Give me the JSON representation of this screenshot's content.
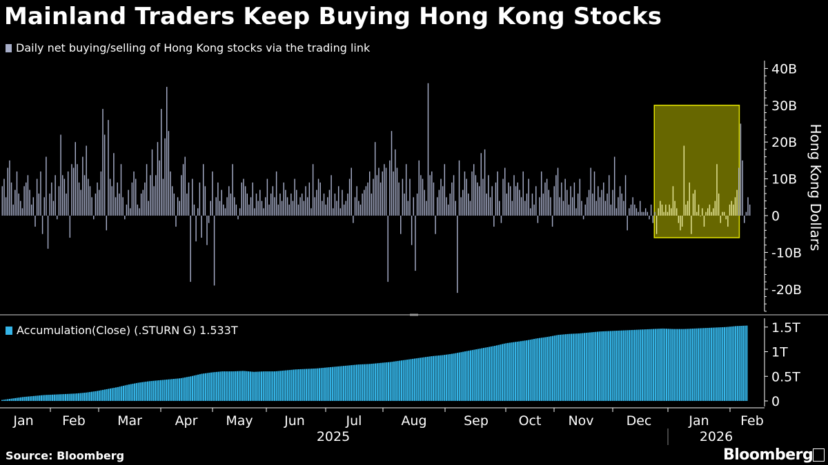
{
  "title": "Mainland Traders Keep Buying Hong Kong Stocks",
  "legend_top": "Daily net buying/selling of Hong Kong stocks via the trading link",
  "legend_bottom": "Accumulation(Close) (.STURN G) 1.533T",
  "source": "Source: Bloomberg",
  "brand": "Bloomberg",
  "colors": {
    "daily": "#a7aec9",
    "accum": "#35b5e8",
    "highlight": "#bcbc00",
    "axis": "#ffffff",
    "grid": "#5a5a5a"
  },
  "chart_data": [
    {
      "type": "bar",
      "series": [
        {
          "name": "Daily net buying/selling of Hong Kong stocks via the trading link",
          "values": [
            8,
            10,
            5,
            13,
            15,
            9,
            3,
            7,
            12,
            6,
            4,
            2,
            8,
            9,
            11,
            7,
            3,
            5,
            -3,
            10,
            6,
            12,
            -5,
            5,
            16,
            -9,
            6,
            9,
            4,
            11,
            -1,
            8,
            22,
            11,
            10,
            6,
            12,
            -6,
            14,
            13,
            20,
            14,
            9,
            7,
            16,
            11,
            19,
            10,
            8,
            5,
            -1,
            6,
            9,
            7,
            12,
            29,
            22,
            -4,
            26,
            10,
            8,
            17,
            5,
            9,
            6,
            14,
            5,
            -1,
            3,
            7,
            2,
            9,
            12,
            10,
            3,
            2,
            6,
            7,
            9,
            14,
            4,
            11,
            18,
            8,
            11,
            20,
            15,
            29,
            10,
            21,
            35,
            23,
            12,
            8,
            6,
            -3,
            5,
            4,
            11,
            14,
            16,
            6,
            9,
            -18,
            10,
            3,
            -7,
            2,
            9,
            -6,
            14,
            8,
            -8,
            -2,
            4,
            12,
            -19,
            5,
            9,
            4,
            7,
            3,
            2,
            5,
            8,
            6,
            14,
            5,
            3,
            -1,
            2,
            9,
            10,
            8,
            6,
            3,
            5,
            9,
            2,
            6,
            4,
            7,
            4,
            2,
            5,
            10,
            3,
            6,
            8,
            5,
            12,
            3,
            6,
            4,
            9,
            7,
            5,
            3,
            6,
            4,
            10,
            7,
            3,
            5,
            6,
            4,
            8,
            5,
            9,
            2,
            14,
            5,
            7,
            10,
            9,
            4,
            6,
            3,
            5,
            7,
            11,
            2,
            6,
            4,
            8,
            2,
            7,
            3,
            4,
            6,
            10,
            13,
            -2,
            5,
            8,
            4,
            3,
            6,
            7,
            8,
            9,
            12,
            6,
            10,
            20,
            11,
            13,
            9,
            12,
            14,
            13,
            -18,
            15,
            23,
            12,
            18,
            13,
            9,
            -5,
            10,
            6,
            14,
            4,
            10,
            -8,
            5,
            -15,
            6,
            15,
            11,
            10,
            7,
            4,
            36,
            11,
            12,
            9,
            -5,
            5,
            7,
            10,
            8,
            14,
            5,
            3,
            6,
            9,
            11,
            4,
            -21,
            15,
            5,
            7,
            12,
            10,
            6,
            4,
            12,
            14,
            11,
            9,
            8,
            17,
            10,
            18,
            6,
            11,
            5,
            8,
            -3,
            9,
            12,
            4,
            -2,
            10,
            13,
            6,
            9,
            8,
            4,
            11,
            8,
            9,
            7,
            5,
            12,
            4,
            6,
            10,
            2,
            6,
            3,
            8,
            -2,
            5,
            12,
            6,
            9,
            10,
            7,
            5,
            -3,
            8,
            11,
            13,
            5,
            9,
            4,
            10,
            7,
            3,
            8,
            5,
            9,
            2,
            6,
            10,
            4,
            -1,
            3,
            5,
            7,
            13,
            6,
            12,
            4,
            8,
            5,
            7,
            9,
            4,
            6,
            11,
            3,
            7,
            16,
            2,
            5,
            8,
            6,
            4,
            11,
            -4,
            2,
            3,
            5,
            3,
            2,
            1,
            4,
            1,
            1,
            2,
            1,
            -1,
            3,
            -2,
            1,
            -5,
            2,
            4,
            3,
            1,
            3,
            1,
            3,
            2,
            8,
            4,
            2,
            -2,
            -4,
            -3,
            19,
            3,
            4,
            9,
            -5,
            6,
            7,
            1,
            3,
            0,
            2,
            -3,
            1,
            2,
            3,
            1,
            2,
            4,
            14,
            6,
            -2,
            1,
            1,
            -1,
            -3,
            3,
            4,
            3,
            5,
            7,
            13,
            25,
            15,
            -2,
            1,
            5,
            3
          ]
        }
      ],
      "x": {
        "months": [
          "Jan",
          "Feb",
          "Mar",
          "Apr",
          "May",
          "Jun",
          "Jul",
          "Aug",
          "Sep",
          "Oct",
          "Nov",
          "Dec",
          "Jan",
          "Feb"
        ],
        "years": [
          "2025",
          "2026"
        ]
      },
      "ylabel": "Hong Kong Dollars",
      "yticks": [
        "40B",
        "30B",
        "20B",
        "10B",
        "0",
        "-10B",
        "-20B"
      ],
      "ylim": [
        -25,
        42
      ],
      "highlight": {
        "from_index": 358,
        "to_index": 402,
        "y_range": [
          -6,
          30
        ]
      },
      "grid": false
    },
    {
      "type": "bar",
      "series": [
        {
          "name": "Accumulation(Close) (.STURN G) 1.533T",
          "values": [
            0.02,
            0.05,
            0.08,
            0.1,
            0.12,
            0.13,
            0.14,
            0.15,
            0.17,
            0.2,
            0.24,
            0.28,
            0.33,
            0.37,
            0.4,
            0.42,
            0.44,
            0.46,
            0.5,
            0.55,
            0.58,
            0.6,
            0.6,
            0.61,
            0.59,
            0.6,
            0.6,
            0.62,
            0.64,
            0.65,
            0.66,
            0.68,
            0.7,
            0.72,
            0.74,
            0.75,
            0.77,
            0.79,
            0.82,
            0.85,
            0.88,
            0.91,
            0.93,
            0.96,
            1.0,
            1.04,
            1.08,
            1.12,
            1.17,
            1.2,
            1.23,
            1.27,
            1.3,
            1.34,
            1.36,
            1.37,
            1.39,
            1.41,
            1.42,
            1.43,
            1.44,
            1.45,
            1.46,
            1.47,
            1.46,
            1.46,
            1.47,
            1.48,
            1.49,
            1.5,
            1.52,
            1.53
          ]
        }
      ],
      "yticks": [
        "1.5T",
        "1T",
        "0.5T",
        "0"
      ],
      "ylim": [
        0,
        1.65
      ],
      "grid": false
    }
  ]
}
